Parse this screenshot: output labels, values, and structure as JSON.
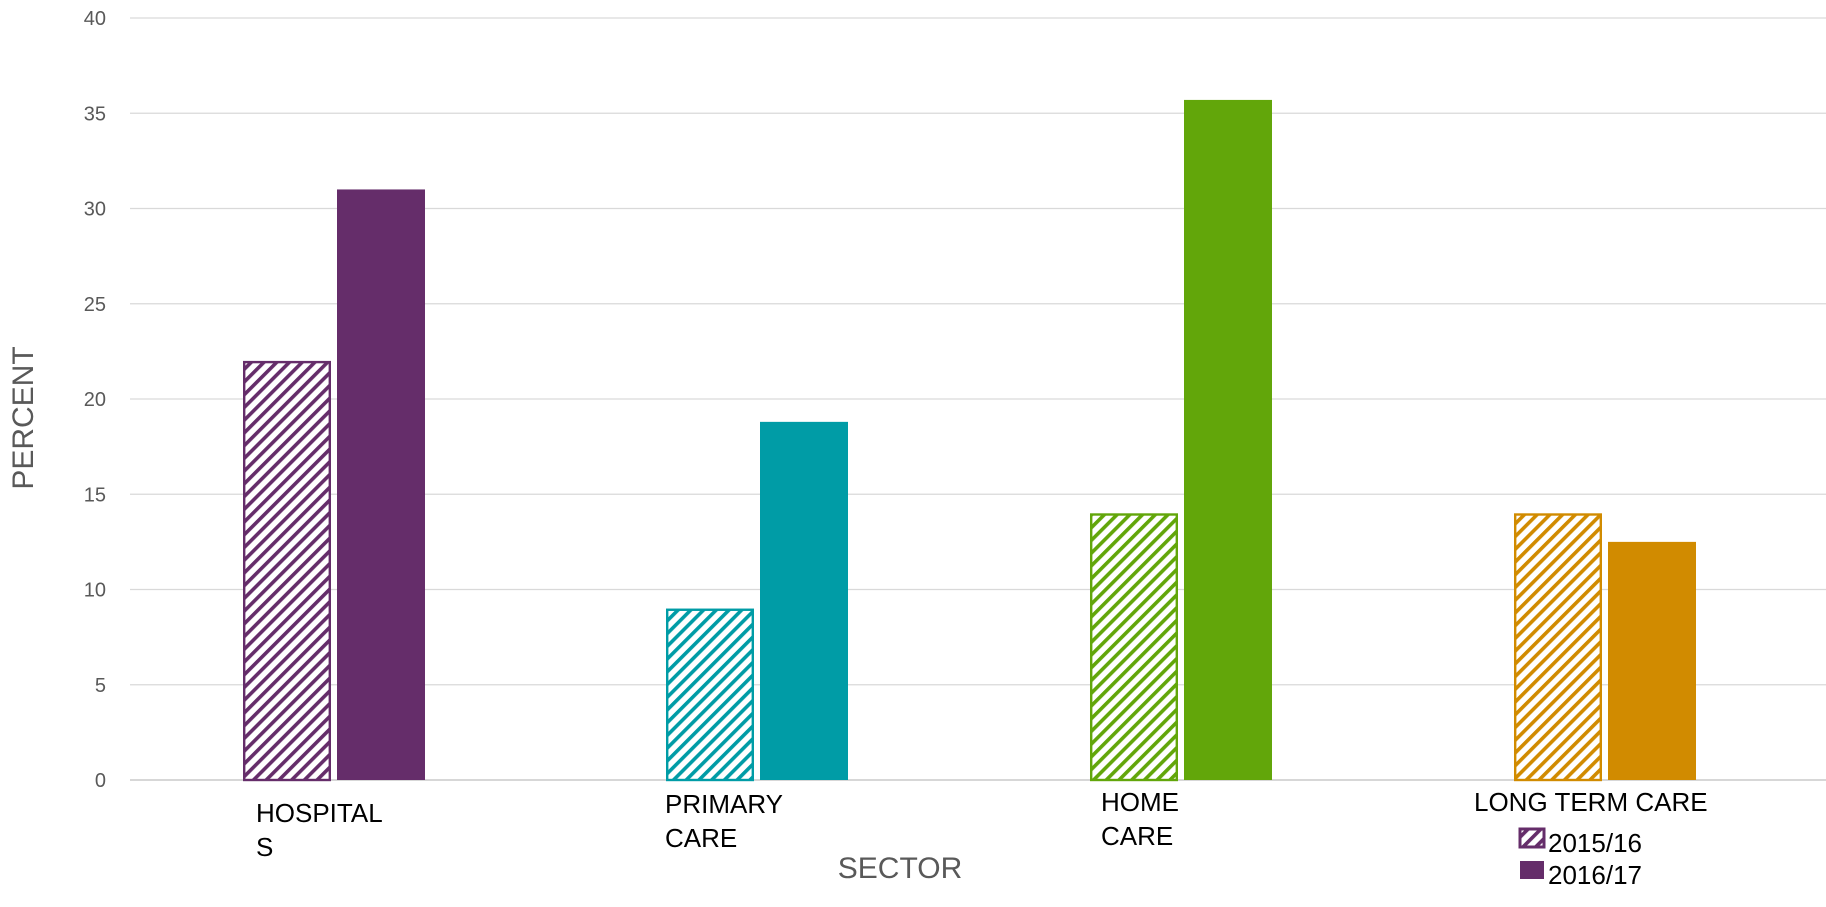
{
  "chart_data": {
    "type": "bar",
    "ylabel": "PERCENT",
    "xlabel": "SECTOR",
    "ylim": [
      0,
      40
    ],
    "yticks": [
      0,
      5,
      10,
      15,
      20,
      25,
      30,
      35,
      40
    ],
    "grid": true,
    "legend_position": "bottom-right",
    "categories": [
      {
        "lines": [
          "HOSPITAL",
          "S"
        ],
        "color": "#652d6a"
      },
      {
        "lines": [
          "PRIMARY",
          "CARE"
        ],
        "color": "#009ca6"
      },
      {
        "lines": [
          "HOME",
          "CARE"
        ],
        "color": "#62a60a"
      },
      {
        "lines": [
          "LONG TERM CARE"
        ],
        "color": "#d18b00"
      }
    ],
    "series": [
      {
        "name": "2015/16",
        "pattern": "hatched",
        "values": [
          22,
          9,
          14,
          14
        ]
      },
      {
        "name": "2016/17",
        "pattern": "solid",
        "values": [
          31,
          18.8,
          35.7,
          12.5
        ]
      }
    ],
    "legend": {
      "colors": [
        "#652d6a",
        "#652d6a"
      ]
    }
  }
}
